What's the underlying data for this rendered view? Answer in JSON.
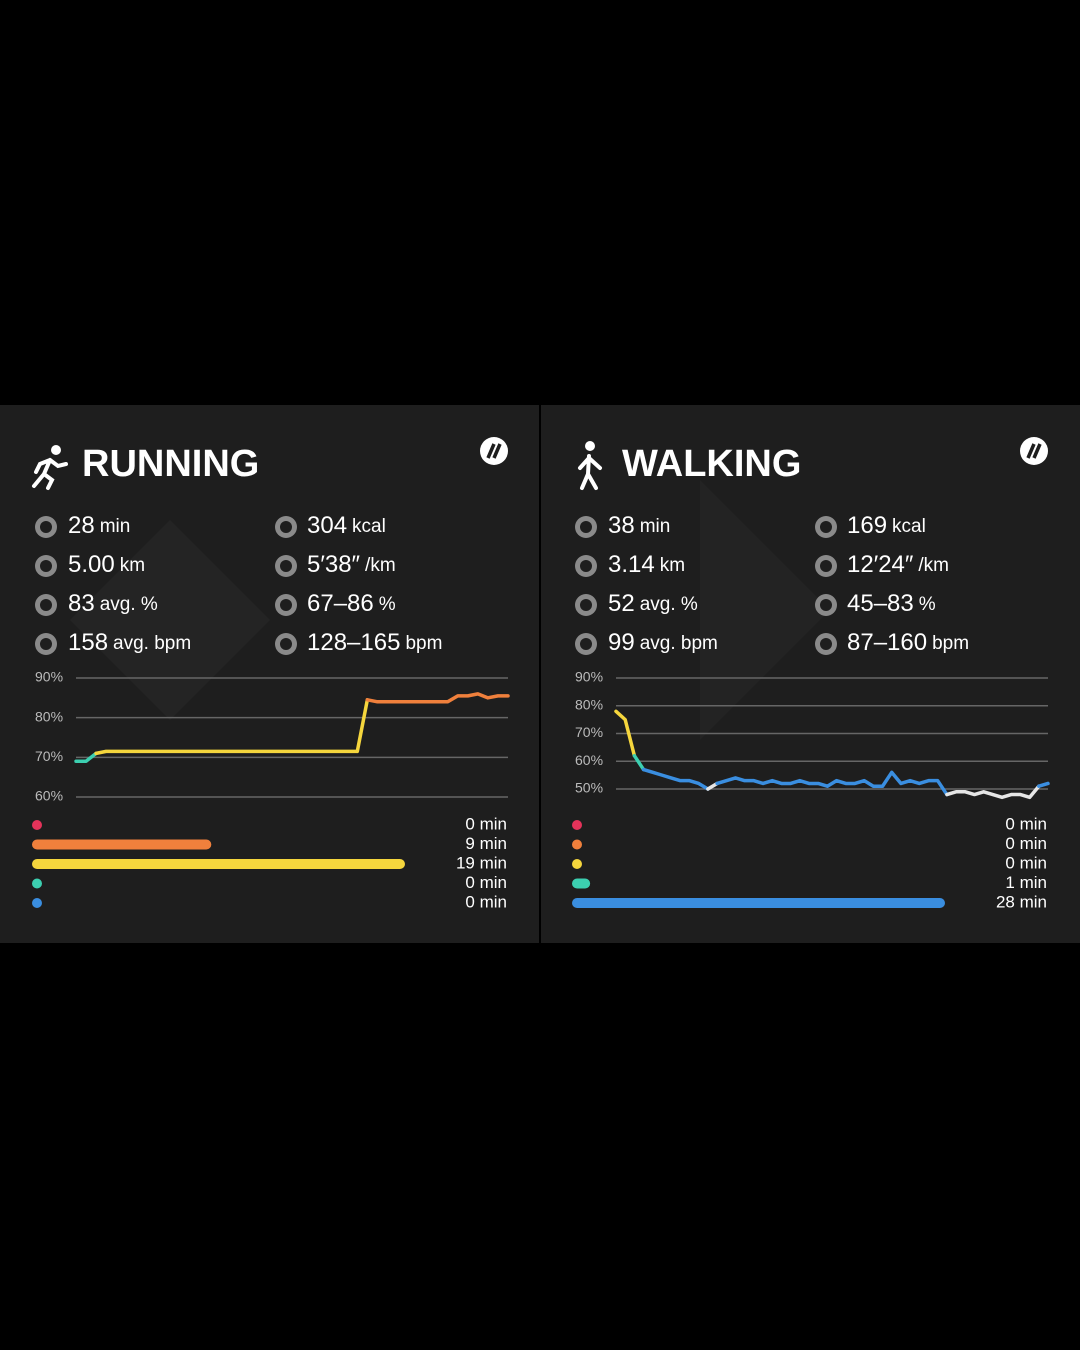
{
  "cards": [
    {
      "title": "RUNNING",
      "stats": [
        {
          "value": "28",
          "unit": "min"
        },
        {
          "value": "304",
          "unit": "kcal"
        },
        {
          "value": "5.00",
          "unit": "km"
        },
        {
          "value": "5′38″",
          "unit": "/km"
        },
        {
          "value": "83",
          "unit": "avg. %"
        },
        {
          "value": "67–86",
          "unit": "%"
        },
        {
          "value": "158",
          "unit": "avg. bpm"
        },
        {
          "value": "128–165",
          "unit": "bpm"
        }
      ],
      "chart": {
        "type": "line",
        "ylim": [
          60,
          90
        ],
        "yticks": [
          {
            "value": 90,
            "label": "90%"
          },
          {
            "value": 80,
            "label": "80%"
          },
          {
            "value": 70,
            "label": "70%"
          },
          {
            "value": 60,
            "label": "60%"
          }
        ],
        "values": [
          69,
          69,
          71,
          71.5,
          71.5,
          71.5,
          71.5,
          71.5,
          71.5,
          71.5,
          71.5,
          71.5,
          71.5,
          71.5,
          71.5,
          71.5,
          71.5,
          71.5,
          71.5,
          71.5,
          71.5,
          71.5,
          71.5,
          71.5,
          71.5,
          71.5,
          71.5,
          71.5,
          71.5,
          84.5,
          84,
          84,
          84,
          84,
          84,
          84,
          84,
          84,
          85.5,
          85.5,
          86,
          85,
          85.5,
          85.5
        ]
      },
      "zones": {
        "colors": [
          "#e5335a",
          "#f0803c",
          "#f5d63d",
          "#3ccfb0",
          "#3a8ee0"
        ],
        "values": [
          0,
          9,
          19,
          0,
          0
        ],
        "value_labels": [
          "0 min",
          "9 min",
          "19 min",
          "0 min",
          "0 min"
        ]
      }
    },
    {
      "title": "WALKING",
      "stats": [
        {
          "value": "38",
          "unit": "min"
        },
        {
          "value": "169",
          "unit": "kcal"
        },
        {
          "value": "3.14",
          "unit": "km"
        },
        {
          "value": "12′24″",
          "unit": "/km"
        },
        {
          "value": "52",
          "unit": "avg. %"
        },
        {
          "value": "45–83",
          "unit": "%"
        },
        {
          "value": "99",
          "unit": "avg. bpm"
        },
        {
          "value": "87–160",
          "unit": "bpm"
        }
      ],
      "chart": {
        "type": "line",
        "ylim": [
          50,
          90
        ],
        "yticks": [
          {
            "value": 90,
            "label": "90%"
          },
          {
            "value": 80,
            "label": "80%"
          },
          {
            "value": 70,
            "label": "70%"
          },
          {
            "value": 60,
            "label": "60%"
          },
          {
            "value": 50,
            "label": "50%"
          }
        ],
        "values": [
          78,
          75,
          62,
          57,
          56,
          55,
          54,
          53,
          53,
          52,
          50,
          52,
          53,
          54,
          53,
          53,
          52,
          53,
          52,
          52,
          53,
          52,
          52,
          51,
          53,
          52,
          52,
          53,
          51,
          51,
          56,
          52,
          53,
          52,
          53,
          53,
          48,
          49,
          49,
          48,
          49,
          48,
          47,
          48,
          48,
          47,
          51,
          52
        ]
      },
      "zones": {
        "colors": [
          "#e5335a",
          "#f0803c",
          "#f5d63d",
          "#3ccfb0",
          "#3a8ee0"
        ],
        "values": [
          0,
          0,
          0,
          1,
          28
        ],
        "value_labels": [
          "0 min",
          "0 min",
          "0 min",
          "1 min",
          "28 min"
        ]
      }
    }
  ]
}
